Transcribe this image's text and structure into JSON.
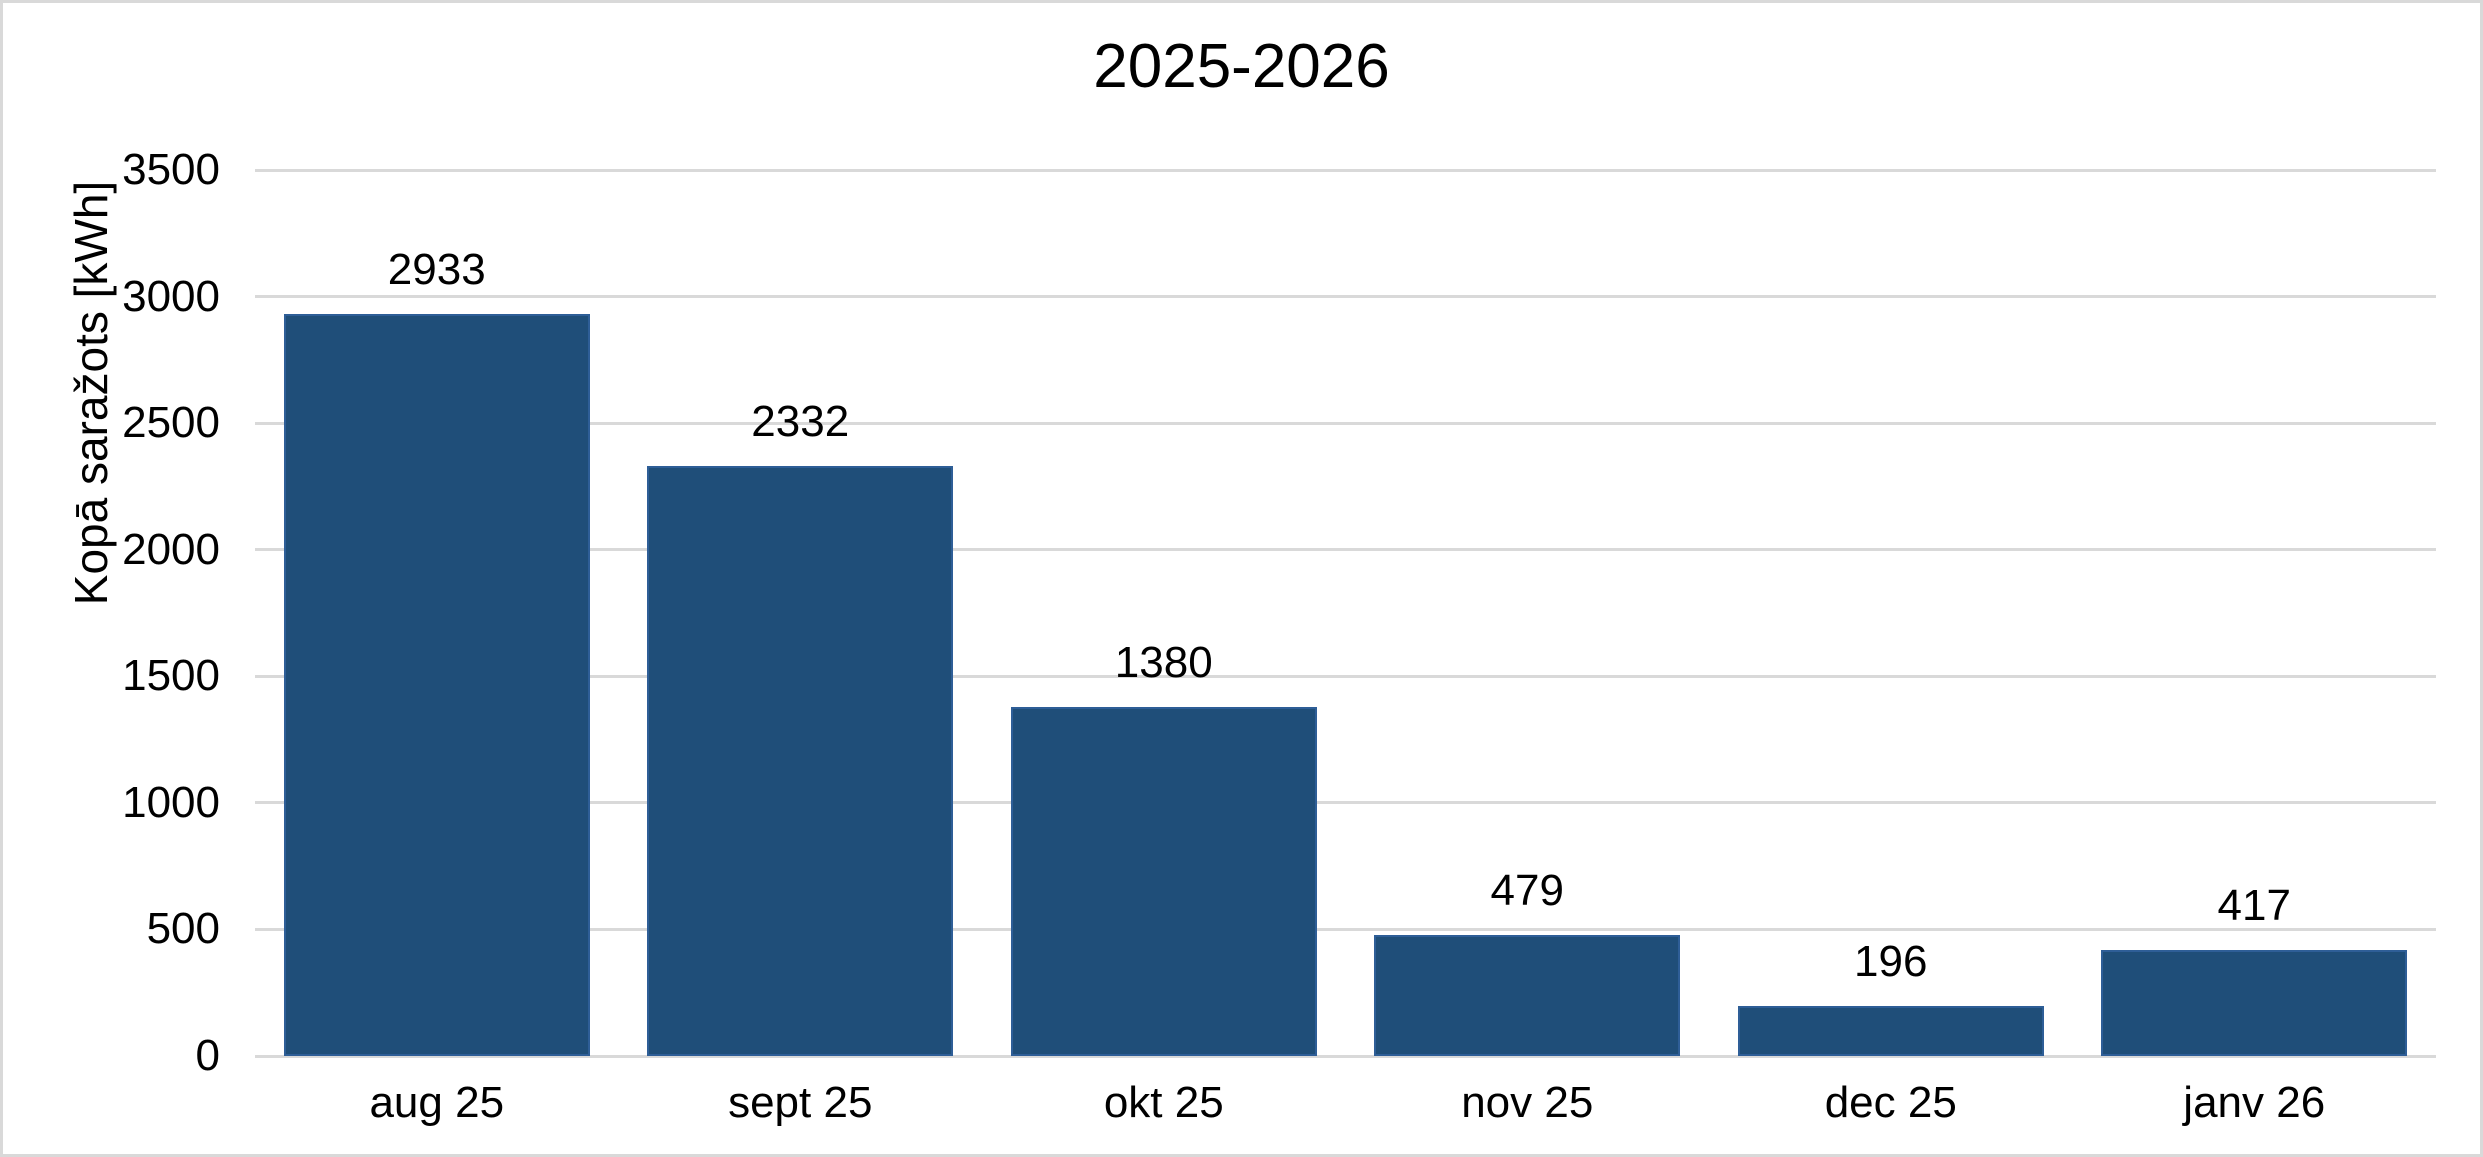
{
  "figure": {
    "background": "#FFFFFF",
    "border_color": "#D9D9D9"
  },
  "chart_data": {
    "type": "bar",
    "title": "2025-2026",
    "xlabel": "",
    "ylabel": "Kopā saražots [kWh]",
    "categories": [
      "aug 25",
      "sept 25",
      "okt 25",
      "nov 25",
      "dec 25",
      "janv 26"
    ],
    "values": [
      2933,
      2332,
      1380,
      479,
      196,
      417
    ],
    "data_labels": [
      "2933",
      "2332",
      "1380",
      "479",
      "196",
      "417"
    ],
    "ylim": [
      0,
      3500
    ],
    "yticks": [
      0,
      500,
      1000,
      1500,
      2000,
      2500,
      3000,
      3500
    ],
    "grid": true,
    "legend": "none",
    "colors": {
      "bar_fill": "#1F4E79",
      "bar_border": "#2E5E97",
      "gridline": "#D9D9D9",
      "text": "#000000"
    }
  }
}
